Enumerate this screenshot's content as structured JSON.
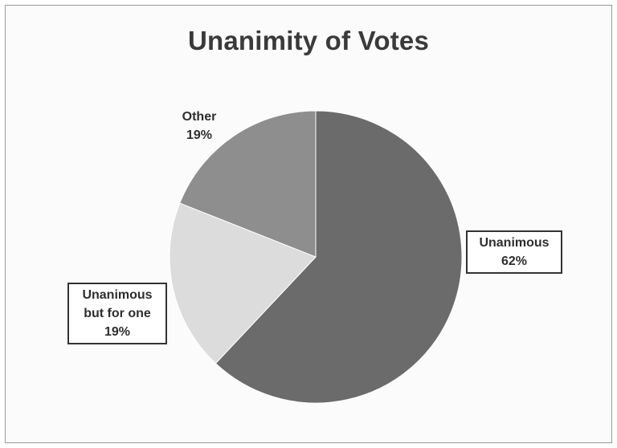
{
  "chart_data": {
    "type": "pie",
    "title": "Unanimity of Votes",
    "start_angle_deg": 0,
    "direction": "clockwise",
    "slices": [
      {
        "category_lines": [
          "Unanimous"
        ],
        "percent_label": "62%",
        "value": 62,
        "color": "#6b6b6b",
        "label_boxed": true
      },
      {
        "category_lines": [
          "Unanimous",
          "but for one"
        ],
        "percent_label": "19%",
        "value": 19,
        "color": "#dcdcdc",
        "label_boxed": true
      },
      {
        "category_lines": [
          "Other"
        ],
        "percent_label": "19%",
        "value": 19,
        "color": "#8e8e8e",
        "label_boxed": false
      }
    ]
  }
}
